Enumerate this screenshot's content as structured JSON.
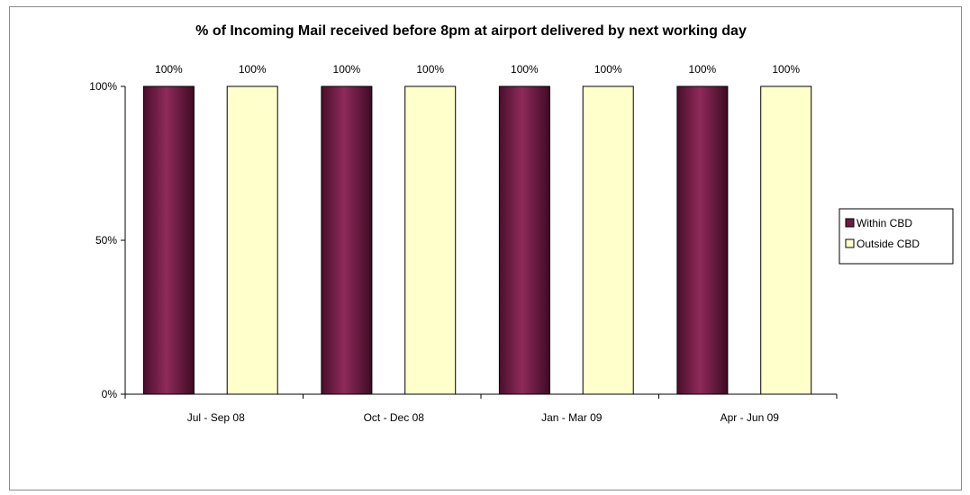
{
  "chart_data": {
    "type": "bar",
    "title": "% of Incoming Mail received before 8pm at airport delivered by next working day",
    "categories": [
      "Jul - Sep 08",
      "Oct - Dec 08",
      "Jan - Mar 09",
      "Apr - Jun 09"
    ],
    "series": [
      {
        "name": "Within CBD",
        "values": [
          100,
          100,
          100,
          100
        ],
        "labels": [
          "100%",
          "100%",
          "100%",
          "100%"
        ],
        "color": "#7a1f4a"
      },
      {
        "name": "Outside CBD",
        "values": [
          100,
          100,
          100,
          100
        ],
        "labels": [
          "100%",
          "100%",
          "100%",
          "100%"
        ],
        "color": "#ffffcc"
      }
    ],
    "yticks": [
      0,
      50,
      100
    ],
    "yticklabels": [
      "0%",
      "50%",
      "100%"
    ],
    "ylim": [
      0,
      100
    ],
    "xlabel": "",
    "ylabel": "",
    "grid": false,
    "legend_position": "right"
  }
}
